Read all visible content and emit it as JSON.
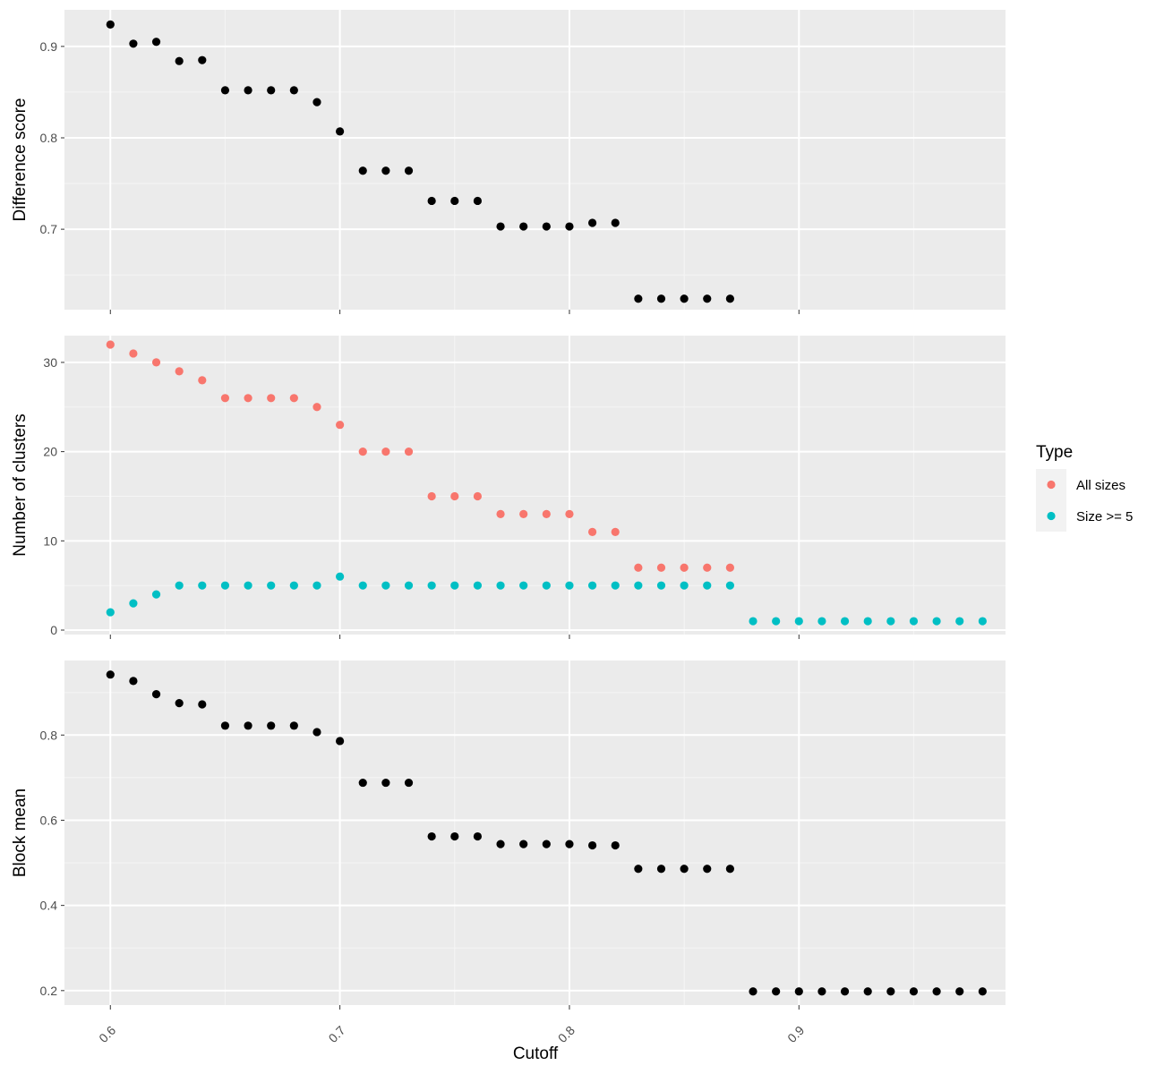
{
  "chart_data": [
    {
      "type": "scatter",
      "ylabel": "Difference score",
      "xlim": [
        0.58,
        0.99
      ],
      "ylim": [
        0.612,
        0.94
      ],
      "yticks": [
        0.7,
        0.8,
        0.9
      ],
      "grid": true,
      "series": [
        {
          "name": "",
          "color": "#000000",
          "x": [
            0.6,
            0.61,
            0.62,
            0.63,
            0.64,
            0.65,
            0.66,
            0.67,
            0.68,
            0.69,
            0.7,
            0.71,
            0.72,
            0.73,
            0.74,
            0.75,
            0.76,
            0.77,
            0.78,
            0.79,
            0.8,
            0.81,
            0.82,
            0.83,
            0.84,
            0.85,
            0.86,
            0.87
          ],
          "y": [
            0.924,
            0.903,
            0.905,
            0.884,
            0.885,
            0.852,
            0.852,
            0.852,
            0.852,
            0.839,
            0.807,
            0.764,
            0.764,
            0.764,
            0.731,
            0.731,
            0.731,
            0.703,
            0.703,
            0.703,
            0.703,
            0.707,
            0.707,
            0.624,
            0.624,
            0.624,
            0.624,
            0.624
          ]
        }
      ]
    },
    {
      "type": "scatter",
      "ylabel": "Number of clusters",
      "xlim": [
        0.58,
        0.99
      ],
      "ylim": [
        -0.5,
        33
      ],
      "yticks": [
        0,
        10,
        20,
        30
      ],
      "grid": true,
      "legend": {
        "title": "Type",
        "position": "right",
        "entries": [
          "All sizes",
          "Size >= 5"
        ]
      },
      "series": [
        {
          "name": "All sizes",
          "color": "#F8766D",
          "x": [
            0.6,
            0.61,
            0.62,
            0.63,
            0.64,
            0.65,
            0.66,
            0.67,
            0.68,
            0.69,
            0.7,
            0.71,
            0.72,
            0.73,
            0.74,
            0.75,
            0.76,
            0.77,
            0.78,
            0.79,
            0.8,
            0.81,
            0.82,
            0.83,
            0.84,
            0.85,
            0.86,
            0.87
          ],
          "y": [
            32,
            31,
            30,
            29,
            28,
            26,
            26,
            26,
            26,
            25,
            23,
            20,
            20,
            20,
            15,
            15,
            15,
            13,
            13,
            13,
            13,
            11,
            11,
            7,
            7,
            7,
            7,
            7
          ]
        },
        {
          "name": "Size >= 5",
          "color": "#00BFC4",
          "x": [
            0.6,
            0.61,
            0.62,
            0.63,
            0.64,
            0.65,
            0.66,
            0.67,
            0.68,
            0.69,
            0.7,
            0.71,
            0.72,
            0.73,
            0.74,
            0.75,
            0.76,
            0.77,
            0.78,
            0.79,
            0.8,
            0.81,
            0.82,
            0.83,
            0.84,
            0.85,
            0.86,
            0.87,
            0.88,
            0.89,
            0.9,
            0.91,
            0.92,
            0.93,
            0.94,
            0.95,
            0.96,
            0.97,
            0.98
          ],
          "y": [
            2,
            3,
            4,
            5,
            5,
            5,
            5,
            5,
            5,
            5,
            6,
            5,
            5,
            5,
            5,
            5,
            5,
            5,
            5,
            5,
            5,
            5,
            5,
            5,
            5,
            5,
            5,
            5,
            1,
            1,
            1,
            1,
            1,
            1,
            1,
            1,
            1,
            1,
            1
          ]
        }
      ]
    },
    {
      "type": "scatter",
      "ylabel": "Block mean",
      "xlabel": "Cutoff",
      "xlim": [
        0.58,
        0.99
      ],
      "ylim": [
        0.166,
        0.975
      ],
      "yticks": [
        0.2,
        0.4,
        0.6,
        0.8
      ],
      "xticks": [
        0.6,
        0.7,
        0.8,
        0.9
      ],
      "grid": true,
      "series": [
        {
          "name": "",
          "color": "#000000",
          "x": [
            0.6,
            0.61,
            0.62,
            0.63,
            0.64,
            0.65,
            0.66,
            0.67,
            0.68,
            0.69,
            0.7,
            0.71,
            0.72,
            0.73,
            0.74,
            0.75,
            0.76,
            0.77,
            0.78,
            0.79,
            0.8,
            0.81,
            0.82,
            0.83,
            0.84,
            0.85,
            0.86,
            0.87,
            0.88,
            0.89,
            0.9,
            0.91,
            0.92,
            0.93,
            0.94,
            0.95,
            0.96,
            0.97,
            0.98
          ],
          "y": [
            0.942,
            0.927,
            0.896,
            0.875,
            0.872,
            0.822,
            0.822,
            0.822,
            0.822,
            0.807,
            0.786,
            0.688,
            0.688,
            0.688,
            0.562,
            0.562,
            0.562,
            0.544,
            0.544,
            0.544,
            0.544,
            0.541,
            0.541,
            0.486,
            0.486,
            0.486,
            0.486,
            0.486,
            0.198,
            0.198,
            0.198,
            0.198,
            0.198,
            0.198,
            0.198,
            0.198,
            0.198,
            0.198,
            0.198
          ]
        }
      ]
    }
  ]
}
